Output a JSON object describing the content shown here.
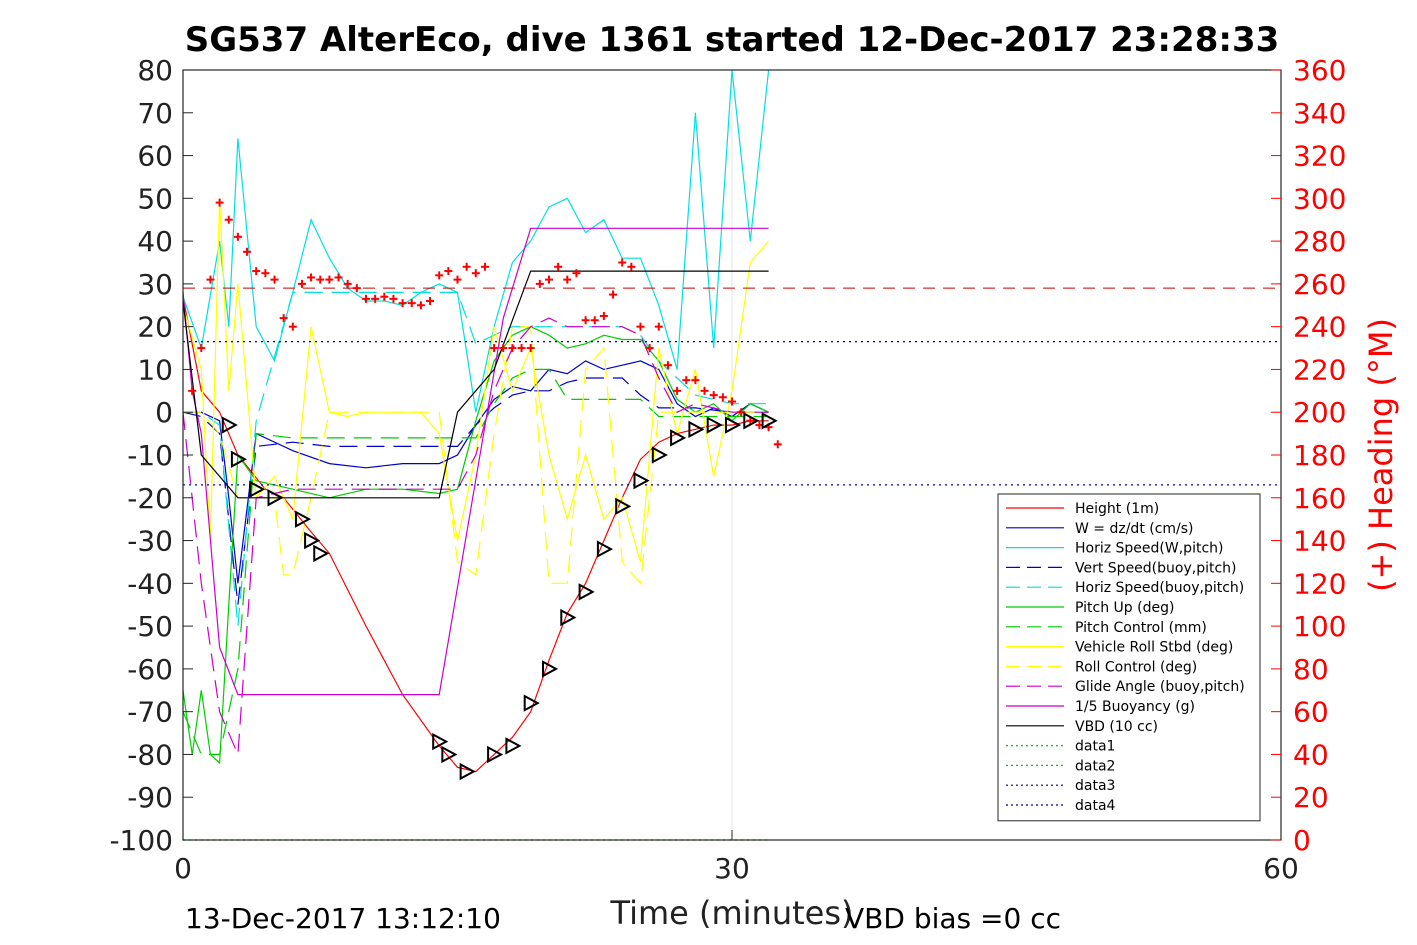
{
  "chart_data": {
    "type": "line",
    "title": "SG537 AlterEco, dive 1361 started 12-Dec-2017 23:28:33",
    "xlabel": "Time (minutes)",
    "ylabel_right": "(+) Heading (°M)",
    "xlim": [
      0,
      60
    ],
    "ylim_left": [
      -100,
      80
    ],
    "ylim_right": [
      0,
      360
    ],
    "x_ticks": [
      "0",
      "30",
      "60"
    ],
    "y_ticks_left": [
      "80",
      "70",
      "60",
      "50",
      "40",
      "30",
      "20",
      "10",
      "0",
      "-10",
      "-20",
      "-30",
      "-40",
      "-50",
      "-60",
      "-70",
      "-80",
      "-90",
      "-100"
    ],
    "y_ticks_right": [
      "360",
      "340",
      "320",
      "300",
      "280",
      "260",
      "240",
      "220",
      "200",
      "180",
      "160",
      "140",
      "120",
      "100",
      "80",
      "60",
      "40",
      "20",
      "0"
    ],
    "grid": "x-only",
    "legend_placement": "bottom-right inside plot",
    "footer_left": "13-Dec-2017 13:12:10",
    "footer_right": "VBD bias =0 cc",
    "series": [
      {
        "name": "Height (1m)",
        "color": "#ff0000",
        "style": "solid",
        "x": [
          0,
          1,
          2,
          3,
          4.5,
          5.5,
          7,
          8,
          10,
          12,
          14,
          15,
          16,
          17,
          18,
          19,
          20,
          21,
          22,
          23,
          24,
          25,
          26,
          27,
          28,
          29,
          30,
          31,
          32
        ],
        "y": [
          27,
          5,
          0,
          -10,
          -18,
          -20,
          -28,
          -33,
          -50,
          -66,
          -78,
          -83,
          -84,
          -80,
          -76,
          -70,
          -58,
          -47,
          -40,
          -30,
          -20,
          -11,
          -7,
          -5,
          -4,
          -3,
          -3,
          -2,
          -2
        ]
      },
      {
        "name": "W = dz/dt (cm/s)",
        "color": "#0000cc",
        "style": "solid",
        "x": [
          0,
          1,
          2,
          2.5,
          3,
          4,
          6,
          8,
          10,
          12,
          14,
          15,
          16,
          17,
          18,
          19,
          20,
          21,
          22,
          23,
          24,
          25,
          26,
          27,
          28,
          29,
          30,
          31,
          32
        ],
        "y": [
          0,
          0,
          -2,
          -20,
          -40,
          -5,
          -9,
          -12,
          -13,
          -12,
          -12,
          -10,
          -3,
          3,
          6,
          5,
          10,
          9,
          12,
          10,
          11,
          12,
          10,
          2,
          -1,
          1,
          -1,
          2,
          0
        ]
      },
      {
        "name": "Horiz Speed(W,pitch)",
        "color": "#00e0e0",
        "style": "solid",
        "x": [
          0,
          1,
          2,
          2.5,
          3,
          4,
          5,
          6,
          7,
          8,
          9,
          10,
          11,
          12,
          13,
          14,
          15,
          16,
          17,
          18,
          19,
          20,
          21,
          22,
          23,
          24,
          25,
          26,
          27,
          28,
          29,
          30,
          31,
          32
        ],
        "y": [
          27,
          15,
          40,
          20,
          64,
          20,
          12,
          28,
          45,
          36,
          29,
          26,
          26,
          25,
          28,
          30,
          28,
          0,
          20,
          35,
          40,
          48,
          50,
          42,
          45,
          36,
          36,
          25,
          10,
          70,
          15,
          80,
          40,
          80
        ]
      },
      {
        "name": "Vert Speed(buoy,pitch)",
        "color": "#0000cc",
        "style": "dashed",
        "x": [
          0,
          1,
          2,
          3,
          4,
          6,
          8,
          10,
          12,
          14,
          15,
          16,
          17,
          18,
          19,
          20,
          21,
          22,
          23,
          24,
          25,
          26,
          28,
          30,
          32
        ],
        "y": [
          0,
          -1,
          -5,
          -45,
          -8,
          -7,
          -8,
          -8,
          -8,
          -8,
          -8,
          -3,
          1,
          4,
          5,
          5,
          7,
          8,
          8,
          8,
          4,
          1,
          1,
          0,
          0
        ]
      },
      {
        "name": "Horiz Speed(buoy,pitch)",
        "color": "#00e0e0",
        "style": "dashed",
        "x": [
          0,
          1,
          2,
          3,
          4,
          6,
          8,
          10,
          12,
          14,
          15,
          16,
          17,
          18,
          19,
          20,
          21,
          22,
          23,
          24,
          25,
          26,
          28,
          30,
          32
        ],
        "y": [
          0,
          0,
          -3,
          -50,
          -2,
          28,
          28,
          28,
          28,
          28,
          28,
          16,
          18,
          20,
          20,
          20,
          20,
          20,
          20,
          20,
          18,
          12,
          4,
          2,
          2
        ]
      },
      {
        "name": "Pitch Up (deg)",
        "color": "#00cc00",
        "style": "solid",
        "x": [
          0,
          0.5,
          1,
          1.5,
          2,
          2.5,
          3,
          4,
          6,
          8,
          10,
          12,
          14,
          15,
          16,
          17,
          18,
          19,
          20,
          21,
          22,
          23,
          24,
          25,
          26,
          27,
          28,
          29,
          30,
          31,
          32
        ],
        "y": [
          -65,
          -80,
          -65,
          -80,
          -82,
          -45,
          -10,
          -16,
          -18,
          -20,
          -18,
          -18,
          -19,
          -18,
          -2,
          12,
          18,
          20,
          18,
          15,
          16,
          18,
          17,
          17,
          12,
          3,
          0,
          2,
          -2,
          2,
          0
        ]
      },
      {
        "name": "Pitch Control (mm)",
        "color": "#00cc00",
        "style": "dashed",
        "x": [
          0,
          1,
          2,
          3,
          4,
          6,
          8,
          10,
          12,
          14,
          15,
          16,
          17,
          18,
          19,
          20,
          21,
          22,
          23,
          24,
          25,
          26,
          28,
          30,
          32
        ],
        "y": [
          -70,
          -80,
          -80,
          -60,
          -5,
          -6,
          -6,
          -6,
          -6,
          -6,
          -6,
          -6,
          2,
          8,
          10,
          10,
          3,
          3,
          3,
          3,
          3,
          -1,
          -1,
          -1,
          -1
        ]
      },
      {
        "name": "Vehicle Roll Stbd (deg)",
        "color": "#ffff00",
        "style": "solid",
        "x": [
          0,
          1,
          1.5,
          2,
          2.5,
          3,
          4,
          5,
          6,
          7,
          8,
          9,
          10,
          11,
          12,
          13,
          14,
          15,
          16,
          17,
          18,
          19,
          20,
          21,
          22,
          23,
          24,
          25,
          26,
          27,
          28,
          29,
          30,
          31,
          32
        ],
        "y": [
          25,
          10,
          -30,
          50,
          5,
          30,
          -20,
          -15,
          -25,
          20,
          0,
          -1,
          0,
          0,
          0,
          0,
          -5,
          -30,
          -10,
          20,
          5,
          15,
          -10,
          -25,
          -10,
          -25,
          -20,
          -35,
          15,
          -5,
          10,
          -15,
          5,
          35,
          40
        ]
      },
      {
        "name": "Roll Control (deg)",
        "color": "#ffff00",
        "style": "dashed",
        "x": [
          0,
          1,
          2,
          3,
          4,
          5,
          5.5,
          6,
          7,
          8,
          10,
          12,
          14,
          15,
          16,
          17,
          18,
          19,
          20,
          21,
          22,
          23,
          24,
          25,
          26,
          28,
          30,
          32
        ],
        "y": [
          0,
          0,
          -5,
          -20,
          -20,
          -20,
          -38,
          -38,
          -20,
          0,
          0,
          0,
          0,
          -35,
          -38,
          -5,
          20,
          20,
          -40,
          -40,
          10,
          15,
          -35,
          -40,
          0,
          0,
          0,
          0
        ]
      },
      {
        "name": "Glide Angle (buoy,pitch)",
        "color": "#cc00cc",
        "style": "dashed",
        "x": [
          0,
          1,
          2,
          3,
          4,
          6,
          8,
          10,
          12,
          14,
          15,
          16,
          17,
          18,
          19,
          20,
          21,
          22,
          23,
          24,
          25,
          26,
          27,
          28,
          30,
          32
        ],
        "y": [
          0,
          -40,
          -70,
          -80,
          -20,
          -18,
          -18,
          -18,
          -18,
          -18,
          -18,
          -10,
          5,
          15,
          20,
          22,
          20,
          20,
          20,
          20,
          18,
          8,
          0,
          2,
          0,
          0
        ]
      },
      {
        "name": "1/5 Buoyancy (g)",
        "color": "#cc00cc",
        "style": "solid",
        "x": [
          0,
          0.5,
          1,
          2,
          3,
          4,
          14,
          17.5,
          19,
          32
        ],
        "y": [
          28,
          5,
          -5,
          -55,
          -66,
          -66,
          -66,
          22,
          43,
          43
        ]
      },
      {
        "name": "VBD (10 cc)",
        "color": "#000000",
        "style": "solid",
        "x": [
          0,
          1,
          2,
          3,
          14,
          15,
          17,
          19,
          32
        ],
        "y": [
          26,
          -10,
          -15,
          -20,
          -20,
          0,
          10,
          33,
          33
        ]
      },
      {
        "name": "data1",
        "color": "#00cc00",
        "style": "dotted",
        "x": [
          0,
          32
        ],
        "y": [
          -100,
          -100
        ]
      },
      {
        "name": "data2",
        "color": "#00cc00",
        "style": "dotted",
        "x": [
          0,
          32
        ],
        "y": [
          -100,
          -100
        ]
      },
      {
        "name": "data3",
        "color": "#000099",
        "style": "dotted",
        "x": [
          0,
          60
        ],
        "y": [
          16.5,
          16.5
        ]
      },
      {
        "name": "data4",
        "color": "#000099",
        "style": "dotted",
        "x": [
          0,
          60
        ],
        "y": [
          -17,
          -17
        ]
      }
    ],
    "heading_markers": {
      "color": "#ff0000",
      "x": [
        0.5,
        1,
        1.5,
        2,
        2.5,
        3,
        3.5,
        4,
        4.5,
        5,
        5.5,
        6,
        6.5,
        7,
        7.5,
        8,
        8.5,
        9,
        9.5,
        10,
        10.5,
        11,
        11.5,
        12,
        12.5,
        13,
        13.5,
        14,
        14.5,
        15,
        15.5,
        16,
        16.5,
        17,
        17.5,
        18,
        18.5,
        19,
        19.5,
        20,
        20.5,
        21,
        21.5,
        22,
        22.5,
        23,
        23.5,
        24,
        24.5,
        25,
        25.5,
        26,
        26.5,
        27,
        27.5,
        28,
        28.5,
        29,
        29.5,
        30,
        30.5,
        31,
        31.5,
        32,
        32.5
      ],
      "y": [
        210,
        230,
        262,
        298,
        290,
        282,
        275,
        266,
        265,
        262,
        244,
        240,
        260,
        263,
        262,
        262,
        263,
        260,
        258,
        253,
        253,
        254,
        253,
        251,
        251,
        250,
        252,
        264,
        266,
        262,
        268,
        265,
        268,
        230,
        230,
        230,
        230,
        230,
        260,
        262,
        268,
        262,
        265,
        243,
        243,
        245,
        255,
        270,
        268,
        240,
        230,
        240,
        222,
        210,
        215,
        215,
        210,
        208,
        207,
        205,
        200,
        196,
        194,
        193,
        185
      ]
    },
    "dive_markers": {
      "color": "#000000",
      "x": [
        2.5,
        3,
        4,
        5,
        6.5,
        7,
        7.5,
        14,
        14.5,
        15.5,
        17,
        18,
        19,
        20,
        21,
        22,
        23,
        24,
        25,
        26,
        27,
        28,
        29,
        30,
        31,
        32
      ],
      "y": [
        -3,
        -11,
        -18,
        -20,
        -25,
        -30,
        -33,
        -77,
        -80,
        -84,
        -80,
        -78,
        -68,
        -60,
        -48,
        -42,
        -32,
        -22,
        -16,
        -10,
        -6,
        -4,
        -3,
        -3,
        -2,
        -2
      ]
    }
  }
}
